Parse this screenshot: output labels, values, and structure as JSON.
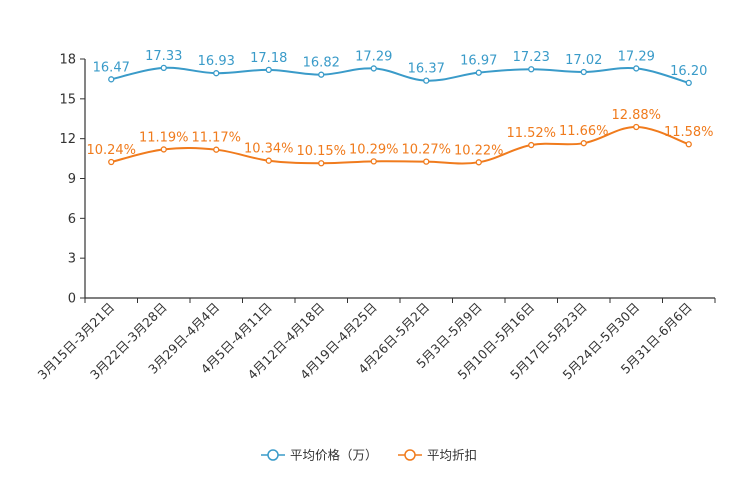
{
  "chart_data": {
    "type": "line",
    "title": "",
    "xlabel": "",
    "ylabel": "",
    "ylim": [
      0,
      18
    ],
    "yticks": [
      0,
      3,
      6,
      9,
      12,
      15,
      18
    ],
    "categories": [
      "3月15日-3月21日",
      "3月22日-3月28日",
      "3月29日-4月4日",
      "4月5日-4月11日",
      "4月12日-4月18日",
      "4月19日-4月25日",
      "4月26日-5月2日",
      "5月3日-5月9日",
      "5月10日-5月16日",
      "5月17日-5月23日",
      "5月24日-5月30日",
      "5月31日-6月6日"
    ],
    "series": [
      {
        "name": "平均价格（万）",
        "color": "#3a9bc9",
        "values": [
          16.47,
          17.33,
          16.93,
          17.18,
          16.82,
          17.29,
          16.37,
          16.97,
          17.23,
          17.02,
          17.29,
          16.2
        ],
        "labels": [
          "16.47",
          "17.33",
          "16.93",
          "17.18",
          "16.82",
          "17.29",
          "16.37",
          "16.97",
          "17.23",
          "17.02",
          "17.29",
          "16.20"
        ]
      },
      {
        "name": "平均折扣",
        "color": "#f07b1d",
        "values": [
          10.24,
          11.19,
          11.17,
          10.34,
          10.15,
          10.29,
          10.27,
          10.22,
          11.52,
          11.66,
          12.88,
          11.58
        ],
        "labels": [
          "10.24%",
          "11.19%",
          "11.17%",
          "10.34%",
          "10.15%",
          "10.29%",
          "10.27%",
          "10.22%",
          "11.52%",
          "11.66%",
          "12.88%",
          "11.58%"
        ]
      }
    ],
    "grid": false,
    "legend_position": "bottom-center"
  }
}
